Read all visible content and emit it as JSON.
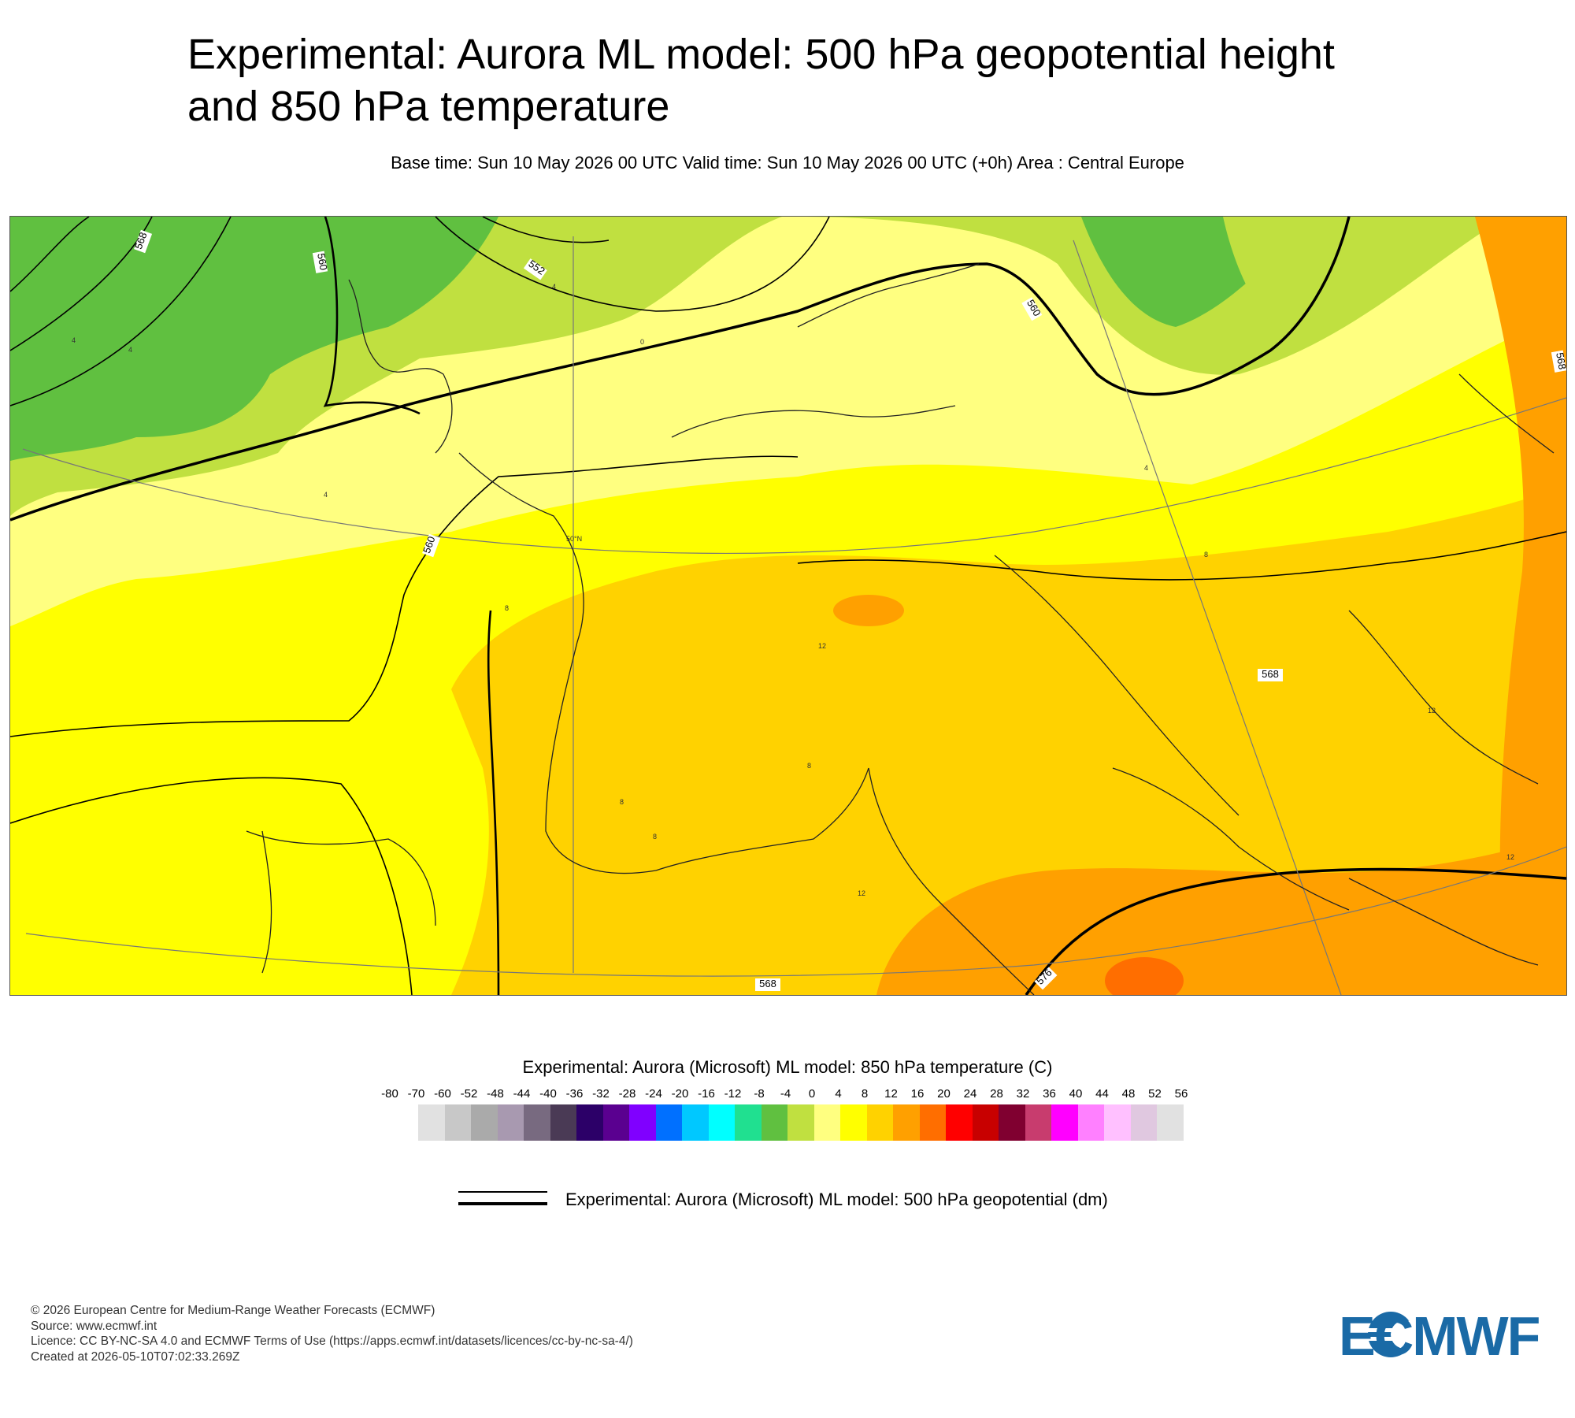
{
  "title": "Experimental: Aurora ML model: 500 hPa geopotential height and 850 hPa temperature",
  "subtitle": "Base time: Sun 10 May 2026 00 UTC Valid time: Sun 10 May 2026 00 UTC (+0h) Area : Central Europe",
  "map": {
    "contour_labels": [
      "568",
      "560",
      "552",
      "560",
      "560",
      "568",
      "568",
      "576",
      "568"
    ],
    "temperature_labels": [
      "4",
      "4",
      "4",
      "0",
      "4",
      "4",
      "8",
      "8",
      "12",
      "8",
      "8",
      "8",
      "12",
      "12",
      "12"
    ],
    "latitude_label": "50°N"
  },
  "legend": {
    "temp_title": "Experimental: Aurora (Microsoft) ML model: 850 hPa temperature (C)",
    "ticks": [
      "-80",
      "-70",
      "-60",
      "-52",
      "-48",
      "-44",
      "-40",
      "-36",
      "-32",
      "-28",
      "-24",
      "-20",
      "-16",
      "-12",
      "-8",
      "-4",
      "0",
      "4",
      "8",
      "12",
      "16",
      "20",
      "24",
      "28",
      "32",
      "36",
      "40",
      "44",
      "48",
      "52",
      "56"
    ],
    "colors": [
      "#e1e1e1",
      "#c8c8c8",
      "#aaaaaa",
      "#a899b0",
      "#786a80",
      "#4a3a55",
      "#2c0068",
      "#5a0090",
      "#8000ff",
      "#0070ff",
      "#00c8ff",
      "#00ffff",
      "#20e090",
      "#60c040",
      "#c0e040",
      "#ffff80",
      "#ffff00",
      "#ffd200",
      "#ffa000",
      "#ff6e00",
      "#ff0000",
      "#c80000",
      "#800030",
      "#c83c6e",
      "#ff00ff",
      "#ff80ff",
      "#ffc0ff",
      "#e0c8e0",
      "#e1e1e1"
    ],
    "geopotential_label": "Experimental: Aurora (Microsoft) ML model: 500 hPa geopotential (dm)"
  },
  "footer": {
    "copyright": "© 2026 European Centre for Medium-Range Weather Forecasts (ECMWF)",
    "source": "Source: www.ecmwf.int",
    "licence": "Licence: CC BY-NC-SA 4.0 and ECMWF Terms of Use (https://apps.ecmwf.int/datasets/licences/cc-by-nc-sa-4/)",
    "created": "Created at 2026-05-10T07:02:33.269Z"
  },
  "logo": {
    "text": "ECMWF",
    "color": "#1a6aa6"
  }
}
